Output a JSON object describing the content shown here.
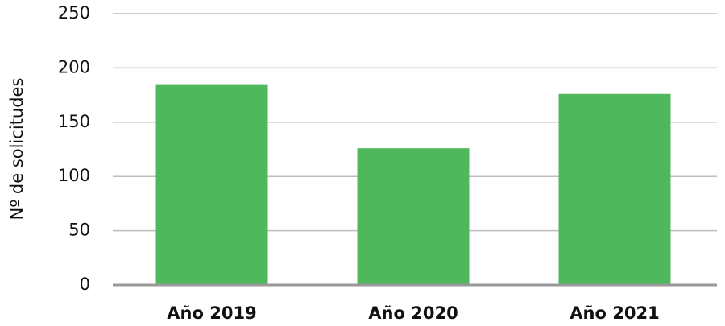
{
  "chart_data": {
    "type": "bar",
    "y_label": "Nº de solicitudes",
    "categories": [
      "Año 2019",
      "Año 2020",
      "Año 2021"
    ],
    "values": [
      185,
      126,
      176
    ],
    "color": "#4fb85c",
    "ylim": [
      0,
      250
    ],
    "yticks": [
      0,
      50,
      100,
      150,
      200,
      250
    ],
    "grid": true
  }
}
